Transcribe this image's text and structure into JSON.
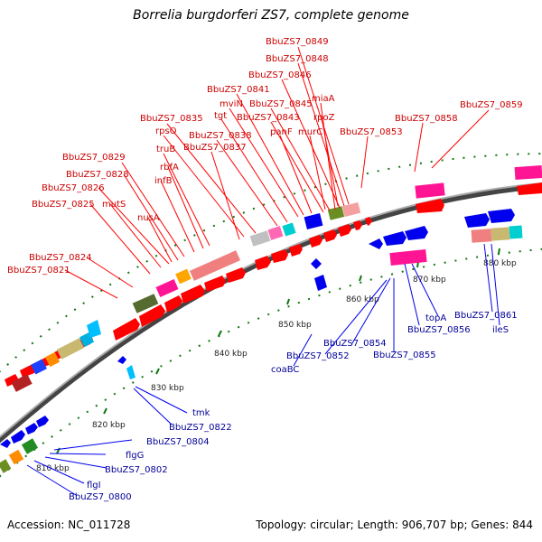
{
  "title": "Borrelia burgdorferi ZS7, complete genome",
  "footer": {
    "accession": "Accession: NC_011728",
    "summary": "Topology: circular; Length: 906,707 bp; Genes: 844"
  },
  "colors": {
    "forward_gene": "#ff0000",
    "reverse_gene": "#0000ee",
    "forward_label": "#cc0000",
    "reverse_label": "#000099",
    "backbone": "#888888",
    "scale_tick": "#117711",
    "scale_label": "#222222"
  },
  "scale_labels": [
    "810 kbp",
    "820 kbp",
    "830 kbp",
    "840 kbp",
    "850 kbp",
    "860 kbp",
    "870 kbp",
    "880 kbp"
  ],
  "forward_labels": [
    "BbuZS7_0849",
    "BbuZS7_0848",
    "BbuZS7_0846",
    "miaA",
    "BbuZS7_0841",
    "mviN",
    "BbuZS7_0845",
    "tgt",
    "BbuZS7_0843",
    "rpoZ",
    "BbuZS7_0835",
    "rpsO",
    "BbuZS7_0838",
    "panF",
    "murC",
    "BbuZS7_0853",
    "BbuZS7_0858",
    "BbuZS7_0859",
    "BbuZS7_0837",
    "truB",
    "rbfA",
    "infB",
    "BbuZS7_0829",
    "BbuZS7_0828",
    "BbuZS7_0826",
    "mutS",
    "BbuZS7_0825",
    "nusA",
    "BbuZS7_0824",
    "BbuZS7_0821"
  ],
  "reverse_labels": [
    "BbuZS7_0861",
    "ileS",
    "topA",
    "BbuZS7_0856",
    "BbuZS7_0854",
    "BbuZS7_0855",
    "BbuZS7_0852",
    "coaBC",
    "tmk",
    "BbuZS7_0822",
    "BbuZS7_0804",
    "flgG",
    "BbuZS7_0802",
    "flgI",
    "BbuZS7_0800"
  ]
}
